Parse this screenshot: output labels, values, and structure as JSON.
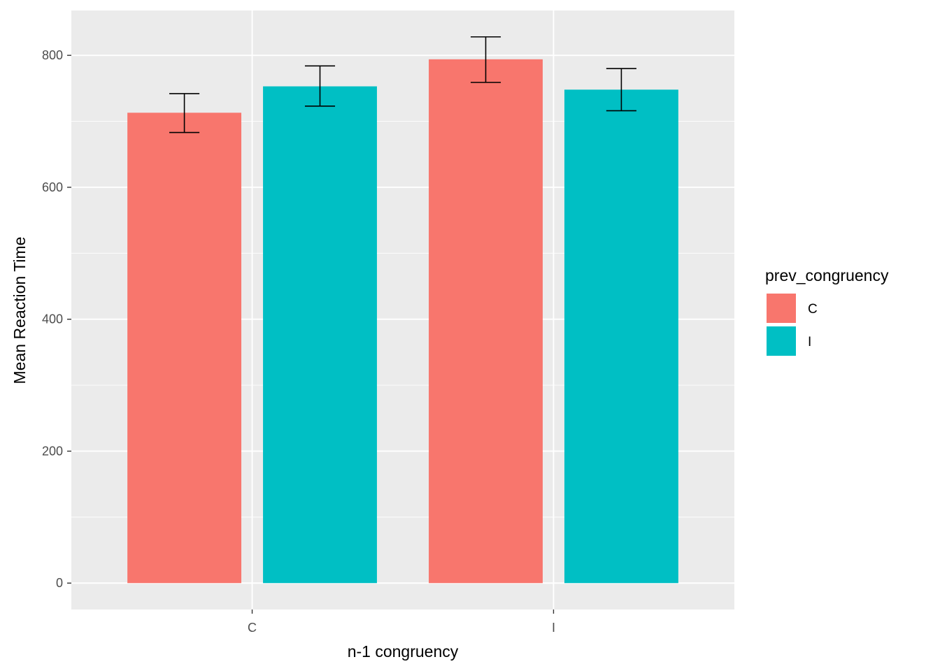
{
  "chart_data": {
    "type": "bar",
    "xlabel": "n-1 congruency",
    "ylabel": "Mean Reaction Time",
    "categories": [
      "C",
      "I"
    ],
    "series": [
      {
        "name": "C",
        "color": "#F8766D",
        "values": [
          713,
          794
        ],
        "err_low": [
          683,
          759
        ],
        "err_high": [
          742,
          828
        ]
      },
      {
        "name": "I",
        "color": "#00BFC4",
        "values": [
          753,
          748
        ],
        "err_low": [
          723,
          716
        ],
        "err_high": [
          784,
          780
        ]
      }
    ],
    "ylim": [
      -40,
      868
    ],
    "yticks": [
      0,
      200,
      400,
      600,
      800
    ],
    "legend": {
      "title": "prev_congruency",
      "position": "right"
    },
    "grid": true,
    "panel_background": "#EBEBEB"
  }
}
